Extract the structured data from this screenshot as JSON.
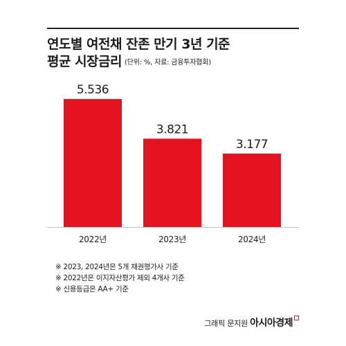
{
  "title": {
    "line1": "연도별 여전채 잔존 만기 3년 기준",
    "line2": "평균 시장금리",
    "note": "(단위: %, 자료: 금융투자협회)"
  },
  "chart_data": {
    "type": "bar",
    "categories": [
      "2022년",
      "2023년",
      "2024년"
    ],
    "values": [
      5.536,
      3.821,
      3.177
    ],
    "value_labels": [
      "5.536",
      "3.821",
      "3.177"
    ],
    "ylim": [
      0,
      6
    ],
    "color": "#e3141f",
    "grid": false,
    "legend": "none"
  },
  "footnotes": [
    "※ 2023, 2024년은 5개 채권평가사 기준",
    "※ 2022년은 이지자산평가 제외 4개사 기준",
    "※ 신용등급은 AA+ 기준"
  ],
  "credit": {
    "text": "그래픽 문지원",
    "brand": "아시아경제"
  }
}
